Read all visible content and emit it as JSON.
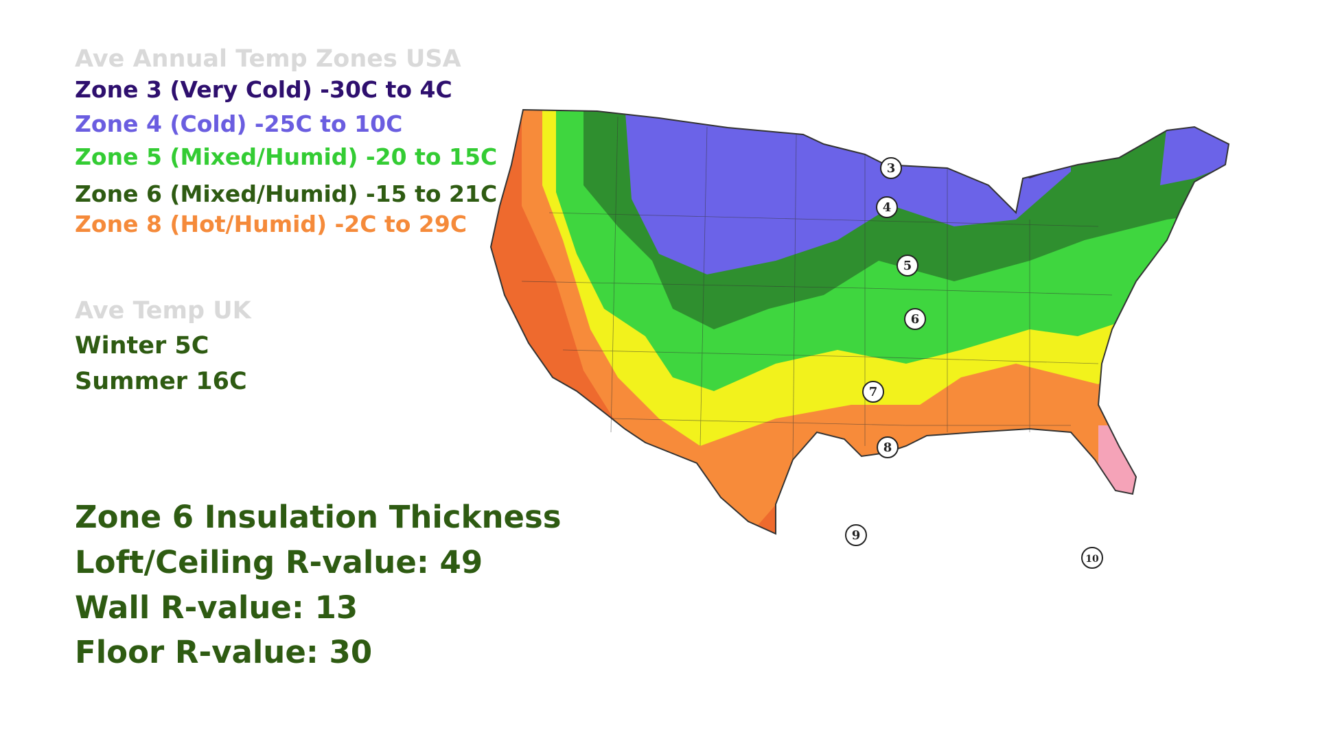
{
  "usa_heading": "Ave Annual Temp Zones USA",
  "zones": [
    {
      "label": "Zone 3 (Very Cold) -30C to 4C",
      "color": "#2e0f6e"
    },
    {
      "label": "Zone 4 (Cold) -25C to 10C",
      "color": "#6a5de0"
    },
    {
      "label": "Zone 5 (Mixed/Humid) -20 to 15C",
      "color": "#33cc33"
    },
    {
      "label": "Zone 6 (Mixed/Humid) -15 to 21C",
      "color": "#2e5b12"
    },
    {
      "label": "Zone 8 (Hot/Humid) -2C to 29C",
      "color": "#f58a3a"
    }
  ],
  "uk": {
    "heading": "Ave Temp UK",
    "winter": "Winter 5C",
    "summer": "Summer 16C"
  },
  "insulation": {
    "title": "Zone 6 Insulation Thickness",
    "loft": "Loft/Ceiling R-value: 49",
    "wall": "Wall R-value: 13",
    "floor": "Floor R-value: 30"
  },
  "map": {
    "zone_colors": {
      "z3": "#3b1d5e",
      "z4": "#6b63e8",
      "z5": "#2f8f2f",
      "z6": "#3fd63f",
      "z7": "#f2f21c",
      "z8": "#f78b3a",
      "z9": "#ee6a2e",
      "z10": "#f5a3b8"
    },
    "zone_markers": [
      "3",
      "4",
      "5",
      "6",
      "7",
      "8",
      "9",
      "10"
    ]
  }
}
